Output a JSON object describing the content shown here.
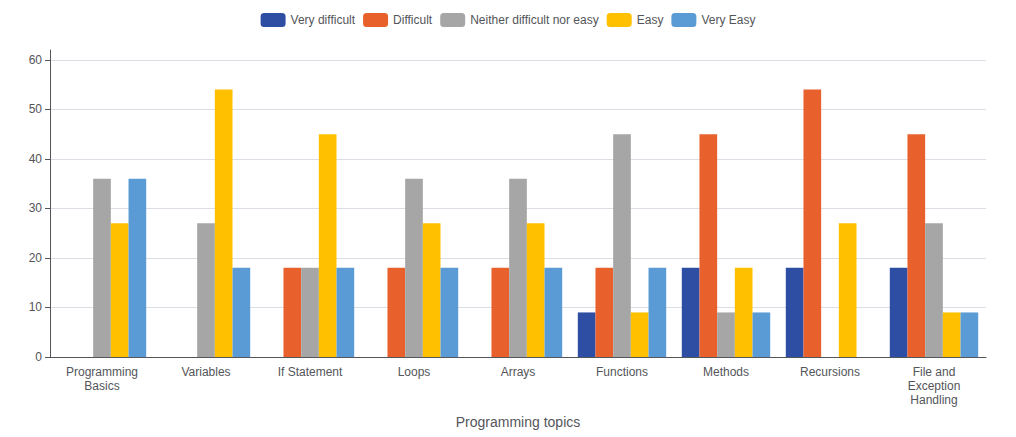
{
  "chart_data": {
    "type": "bar",
    "xlabel": "Programming topics",
    "categories": [
      "Programming\nBasics",
      "Variables",
      "If Statement",
      "Loops",
      "Arrays",
      "Functions",
      "Methods",
      "Recursions",
      "File and\nException\nHandling"
    ],
    "series": [
      {
        "name": "Very difficult",
        "color": "#2E4EA3",
        "values": [
          0,
          0,
          0,
          0,
          0,
          9,
          18,
          18,
          18
        ]
      },
      {
        "name": "Difficult",
        "color": "#E8612C",
        "values": [
          0,
          0,
          18,
          18,
          18,
          18,
          45,
          54,
          45
        ]
      },
      {
        "name": "Neither difficult nor easy",
        "color": "#A6A6A6",
        "values": [
          36,
          27,
          18,
          36,
          36,
          45,
          9,
          0,
          27
        ]
      },
      {
        "name": "Easy",
        "color": "#FFC000",
        "values": [
          27,
          54,
          45,
          27,
          27,
          9,
          18,
          27,
          9
        ]
      },
      {
        "name": "Very Easy",
        "color": "#5B9BD5",
        "values": [
          36,
          18,
          18,
          18,
          18,
          18,
          9,
          0,
          9
        ]
      }
    ],
    "ylim": [
      0,
      62
    ],
    "yticks": [
      0,
      10,
      20,
      30,
      40,
      50,
      60
    ],
    "grid": true,
    "legend": "top"
  }
}
